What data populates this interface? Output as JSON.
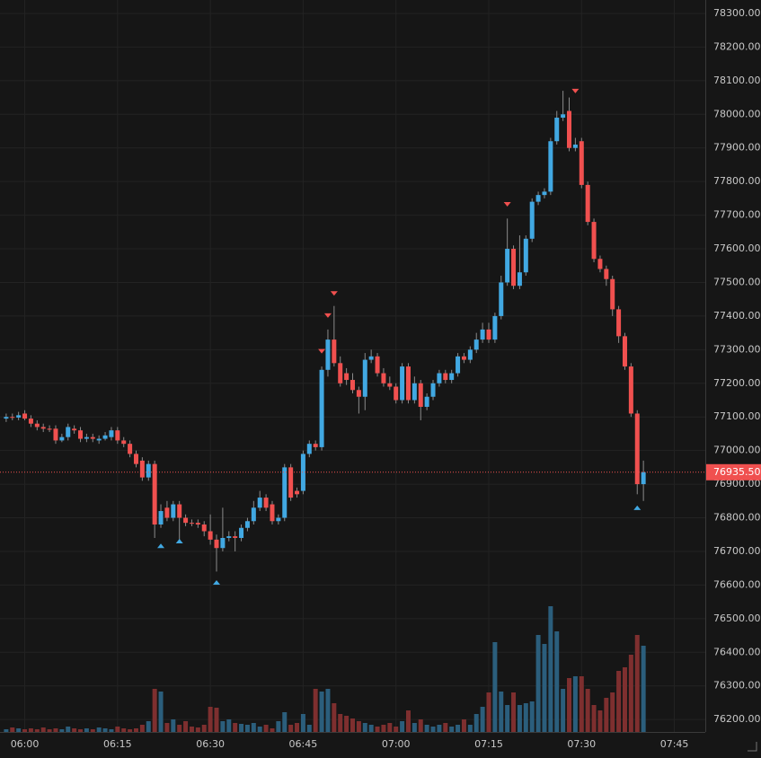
{
  "chart_data": {
    "type": "candlestick",
    "up_color": "#41a8e2",
    "down_color": "#f0504f",
    "volume_up_color": "#2b5e7c",
    "volume_down_color": "#7e2f2f",
    "grid": true,
    "x": [
      "05:57",
      "05:58",
      "05:59",
      "06:00",
      "06:01",
      "06:02",
      "06:03",
      "06:04",
      "06:05",
      "06:06",
      "06:07",
      "06:08",
      "06:09",
      "06:10",
      "06:11",
      "06:12",
      "06:13",
      "06:14",
      "06:15",
      "06:16",
      "06:17",
      "06:18",
      "06:19",
      "06:20",
      "06:21",
      "06:22",
      "06:23",
      "06:24",
      "06:25",
      "06:26",
      "06:27",
      "06:28",
      "06:29",
      "06:30",
      "06:31",
      "06:32",
      "06:33",
      "06:34",
      "06:35",
      "06:36",
      "06:37",
      "06:38",
      "06:39",
      "06:40",
      "06:41",
      "06:42",
      "06:43",
      "06:44",
      "06:45",
      "06:46",
      "06:47",
      "06:48",
      "06:49",
      "06:50",
      "06:51",
      "06:52",
      "06:53",
      "06:54",
      "06:55",
      "06:56",
      "06:57",
      "06:58",
      "06:59",
      "07:00",
      "07:01",
      "07:02",
      "07:03",
      "07:04",
      "07:05",
      "07:06",
      "07:07",
      "07:08",
      "07:09",
      "07:10",
      "07:11",
      "07:12",
      "07:13",
      "07:14",
      "07:15",
      "07:16",
      "07:17",
      "07:18",
      "07:19",
      "07:20",
      "07:21",
      "07:22",
      "07:23",
      "07:24",
      "07:25",
      "07:26",
      "07:27",
      "07:28",
      "07:29",
      "07:30",
      "07:31",
      "07:32",
      "07:33",
      "07:34",
      "07:35",
      "07:36",
      "07:37",
      "07:38",
      "07:39",
      "07:40"
    ],
    "open": [
      77095,
      77100,
      77098,
      77110,
      77095,
      77080,
      77070,
      77065,
      77065,
      77030,
      77040,
      77065,
      77060,
      77035,
      77040,
      77030,
      77035,
      77040,
      77060,
      77030,
      77020,
      76990,
      76970,
      76920,
      76960,
      76780,
      76830,
      76800,
      76840,
      76800,
      76785,
      76785,
      76780,
      76760,
      76735,
      76710,
      76740,
      76745,
      76740,
      76770,
      76790,
      76830,
      76860,
      76840,
      76790,
      76800,
      76950,
      76880,
      76880,
      76990,
      77020,
      77010,
      77240,
      77330,
      77260,
      77230,
      77210,
      77180,
      77160,
      77270,
      77280,
      77230,
      77200,
      77190,
      77150,
      77250,
      77150,
      77200,
      77130,
      77160,
      77200,
      77230,
      77210,
      77230,
      77280,
      77270,
      77300,
      77330,
      77360,
      77330,
      77400,
      77500,
      77600,
      77490,
      77530,
      77630,
      77740,
      77760,
      77770,
      77920,
      77990,
      78010,
      77900,
      77920,
      77790,
      77680,
      77570,
      77540,
      77510,
      77420,
      77340,
      77250,
      77110,
      76900
    ],
    "high": [
      77110,
      77110,
      77115,
      77120,
      77105,
      77090,
      77080,
      77075,
      77075,
      77050,
      77080,
      77075,
      77070,
      77050,
      77050,
      77045,
      77055,
      77070,
      77070,
      77040,
      77030,
      77000,
      76980,
      76970,
      76970,
      76840,
      76850,
      76850,
      76850,
      76810,
      76795,
      76795,
      76790,
      76810,
      76750,
      76830,
      76760,
      76760,
      76780,
      76800,
      76850,
      76880,
      76870,
      76850,
      76810,
      76960,
      76960,
      76890,
      77000,
      77030,
      77030,
      77250,
      77360,
      77430,
      77280,
      77245,
      77230,
      77190,
      77290,
      77300,
      77290,
      77245,
      77220,
      77200,
      77260,
      77260,
      77220,
      77210,
      77170,
      77210,
      77240,
      77240,
      77240,
      77290,
      77290,
      77310,
      77350,
      77380,
      77380,
      77410,
      77520,
      77690,
      77610,
      77640,
      77640,
      77750,
      77770,
      77780,
      77930,
      78010,
      78070,
      78050,
      77930,
      77930,
      77800,
      77690,
      77580,
      77550,
      77520,
      77430,
      77350,
      77260,
      77120,
      76970
    ],
    "low": [
      77085,
      77090,
      77090,
      77090,
      77070,
      77060,
      77055,
      77055,
      77020,
      77025,
      77030,
      77050,
      77025,
      77025,
      77025,
      77020,
      77030,
      77030,
      77020,
      77010,
      76980,
      76950,
      76910,
      76910,
      76740,
      76770,
      76790,
      76790,
      76730,
      76775,
      76775,
      76770,
      76745,
      76720,
      76640,
      76700,
      76730,
      76700,
      76730,
      76760,
      76780,
      76820,
      76820,
      76780,
      76780,
      76790,
      76850,
      76860,
      76870,
      76980,
      77000,
      77000,
      77220,
      77250,
      77190,
      77195,
      77170,
      77110,
      77120,
      77260,
      77220,
      77190,
      77180,
      77140,
      77140,
      77140,
      77140,
      77090,
      77120,
      77150,
      77190,
      77200,
      77200,
      77220,
      77260,
      77260,
      77290,
      77320,
      77320,
      77320,
      77390,
      77490,
      77480,
      77480,
      77520,
      77620,
      77730,
      77750,
      77760,
      77910,
      77980,
      77890,
      77890,
      77780,
      77670,
      77560,
      77530,
      77490,
      77400,
      77320,
      77240,
      77100,
      76870,
      76850
    ],
    "close": [
      77100,
      77098,
      77105,
      77095,
      77080,
      77070,
      77065,
      77062,
      77030,
      77040,
      77070,
      77060,
      77035,
      77040,
      77035,
      77035,
      77045,
      77060,
      77030,
      77020,
      76990,
      76960,
      76920,
      76960,
      76780,
      76820,
      76800,
      76840,
      76800,
      76785,
      76783,
      76780,
      76760,
      76735,
      76710,
      76740,
      76745,
      76740,
      76770,
      76790,
      76830,
      76860,
      76830,
      76790,
      76800,
      76950,
      76860,
      76870,
      76990,
      77020,
      77010,
      77240,
      77330,
      77260,
      77200,
      77210,
      77180,
      77160,
      77270,
      77280,
      77230,
      77200,
      77190,
      77150,
      77250,
      77150,
      77200,
      77130,
      77160,
      77200,
      77230,
      77210,
      77230,
      77280,
      77270,
      77300,
      77330,
      77360,
      77330,
      77400,
      77500,
      77600,
      77490,
      77530,
      77630,
      77740,
      77760,
      77770,
      77920,
      77990,
      78000,
      77900,
      77910,
      77790,
      77680,
      77570,
      77540,
      77510,
      77420,
      77340,
      77250,
      77110,
      76900,
      76935.5
    ],
    "volume": [
      3,
      5,
      4,
      3,
      4,
      3,
      5,
      3,
      4,
      3,
      6,
      4,
      3,
      4,
      3,
      5,
      4,
      3,
      6,
      4,
      3,
      4,
      8,
      12,
      48,
      45,
      10,
      14,
      8,
      12,
      6,
      5,
      8,
      28,
      27,
      12,
      14,
      10,
      9,
      8,
      10,
      6,
      8,
      4,
      12,
      22,
      8,
      10,
      20,
      8,
      48,
      45,
      48,
      32,
      20,
      18,
      15,
      12,
      10,
      8,
      6,
      8,
      10,
      6,
      12,
      24,
      10,
      14,
      8,
      6,
      8,
      10,
      6,
      8,
      14,
      8,
      20,
      28,
      44,
      100,
      45,
      30,
      44,
      30,
      32,
      34,
      108,
      98,
      140,
      112,
      48,
      60,
      62,
      62,
      48,
      30,
      24,
      38,
      44,
      68,
      72,
      86,
      108,
      96
    ],
    "sell_signals": {
      "x": [
        "06:48",
        "06:49",
        "06:50",
        "07:18",
        "07:29"
      ],
      "y": [
        77294,
        77400,
        77466,
        77731,
        78068
      ]
    },
    "buy_signals": {
      "x": [
        "06:22",
        "06:25",
        "06:31",
        "07:39"
      ],
      "y": [
        76718,
        76732,
        76609,
        76831
      ]
    },
    "last_price": {
      "value": 76935.5,
      "label": "76935.50"
    },
    "xlim": [
      "05:56",
      "07:50"
    ],
    "xticks": [
      "06:00",
      "06:15",
      "06:30",
      "06:45",
      "07:00",
      "07:15",
      "07:30",
      "07:45"
    ],
    "ylim": [
      76163,
      78340
    ],
    "yticks": [
      {
        "value": 76200,
        "label": "76200.00"
      },
      {
        "value": 76300,
        "label": "76300.00"
      },
      {
        "value": 76400,
        "label": "76400.00"
      },
      {
        "value": 76500,
        "label": "76500.00"
      },
      {
        "value": 76600,
        "label": "76600.00"
      },
      {
        "value": 76700,
        "label": "76700.00"
      },
      {
        "value": 76800,
        "label": "76800.00"
      },
      {
        "value": 76900,
        "label": "76900.00"
      },
      {
        "value": 77000,
        "label": "77000.00"
      },
      {
        "value": 77100,
        "label": "77100.00"
      },
      {
        "value": 77200,
        "label": "77200.00"
      },
      {
        "value": 77300,
        "label": "77300.00"
      },
      {
        "value": 77400,
        "label": "77400.00"
      },
      {
        "value": 77500,
        "label": "77500.00"
      },
      {
        "value": 77600,
        "label": "77600.00"
      },
      {
        "value": 77700,
        "label": "77700.00"
      },
      {
        "value": 77800,
        "label": "77800.00"
      },
      {
        "value": 77900,
        "label": "77900.00"
      },
      {
        "value": 78000,
        "label": "78000.00"
      },
      {
        "value": 78100,
        "label": "78100.00"
      },
      {
        "value": 78200,
        "label": "78200.00"
      },
      {
        "value": 78300,
        "label": "78300.00"
      }
    ]
  }
}
